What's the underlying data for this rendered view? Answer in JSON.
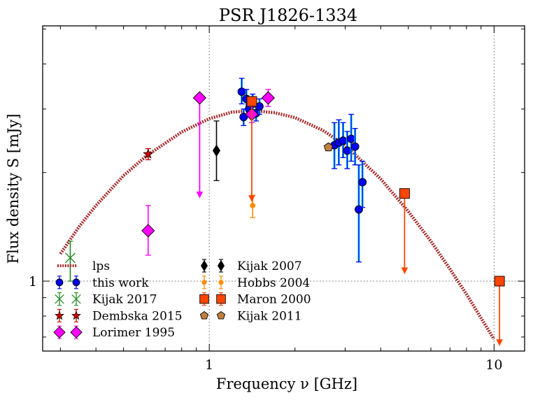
{
  "chart_data": {
    "type": "scatter",
    "title": "PSR J1826-1334",
    "xlabel": "Frequency ν [GHz]",
    "ylabel": "Flux density S [mJy]",
    "xscale": "log",
    "yscale": "log",
    "xlim": [
      0.26,
      12.8
    ],
    "ylim": [
      0.64,
      5.1
    ],
    "xticks": [
      {
        "value": 1,
        "label": "1"
      },
      {
        "value": 10,
        "label": "10"
      }
    ],
    "yticks": [
      {
        "value": 1,
        "label": "1"
      }
    ],
    "reference_lines": {
      "x": [
        1,
        10
      ],
      "y": [
        1
      ]
    },
    "colors": {
      "lps": "#a52a2a",
      "this_work": "#0000ee",
      "this_work_bar": "#11bff0",
      "kijak2017": "#228b22",
      "dembska": "#cc0000",
      "lorimer": "#ff00ff",
      "kijak2007": "#000000",
      "hobbs": "#ff8c00",
      "maron": "#ff4500",
      "kijak2011": "#c08040"
    },
    "legend": {
      "placement": "lower-left",
      "left_column": [
        {
          "key": "lps",
          "label": "lps"
        },
        {
          "key": "this_work",
          "label": "this work"
        },
        {
          "key": "kijak2017",
          "label": "Kijak 2017"
        },
        {
          "key": "dembska",
          "label": "Dembska 2015"
        },
        {
          "key": "lorimer",
          "label": "Lorimer 1995"
        }
      ],
      "right_column": [
        {
          "key": "kijak2007",
          "label": "Kijak 2007"
        },
        {
          "key": "hobbs",
          "label": "Hobbs 2004"
        },
        {
          "key": "maron",
          "label": "Maron 2000"
        },
        {
          "key": "kijak2011",
          "label": "Kijak 2011"
        }
      ]
    },
    "model_curve": {
      "name": "lps",
      "x": [
        0.3,
        0.35,
        0.4,
        0.5,
        0.6,
        0.8,
        1.0,
        1.2,
        1.42,
        1.7,
        2.0,
        2.5,
        3.0,
        4.0,
        5.0,
        6.0,
        7.0,
        8.0,
        9.0,
        10.0
      ],
      "y": [
        1.19,
        1.42,
        1.62,
        1.96,
        2.22,
        2.59,
        2.82,
        2.94,
        2.97,
        2.93,
        2.84,
        2.62,
        2.38,
        1.92,
        1.56,
        1.29,
        1.08,
        0.92,
        0.79,
        0.69
      ]
    },
    "series": [
      {
        "key": "this_work",
        "name": "this work",
        "marker": "circle",
        "points": [
          {
            "x": 1.3,
            "y": 3.35,
            "lo": 3.1,
            "hi": 3.65
          },
          {
            "x": 1.32,
            "y": 2.85,
            "lo": 2.7,
            "hi": 3.0
          },
          {
            "x": 1.35,
            "y": 3.2,
            "lo": 3.0,
            "hi": 3.4
          },
          {
            "x": 1.38,
            "y": 3.0,
            "lo": 2.85,
            "hi": 3.15
          },
          {
            "x": 1.42,
            "y": 3.1,
            "lo": 2.95,
            "hi": 3.3
          },
          {
            "x": 1.46,
            "y": 2.92,
            "lo": 2.78,
            "hi": 3.06
          },
          {
            "x": 1.5,
            "y": 3.05,
            "lo": 2.9,
            "hi": 3.2
          },
          {
            "x": 2.75,
            "y": 2.38,
            "lo": 2.05,
            "hi": 2.75
          },
          {
            "x": 2.85,
            "y": 2.42,
            "lo": 2.1,
            "hi": 2.8
          },
          {
            "x": 2.95,
            "y": 2.45,
            "lo": 2.2,
            "hi": 2.75
          },
          {
            "x": 3.05,
            "y": 2.3,
            "lo": 2.05,
            "hi": 2.6
          },
          {
            "x": 3.15,
            "y": 2.48,
            "lo": 2.15,
            "hi": 2.9
          },
          {
            "x": 3.25,
            "y": 2.36,
            "lo": 2.1,
            "hi": 2.65
          },
          {
            "x": 3.35,
            "y": 1.58,
            "lo": 1.13,
            "hi": 2.1
          },
          {
            "x": 3.45,
            "y": 1.88,
            "lo": 1.6,
            "hi": 2.15
          }
        ]
      },
      {
        "key": "kijak2017",
        "name": "Kijak 2017",
        "marker": "x",
        "points": [
          {
            "x": 0.325,
            "y": 1.16,
            "lo": 1.0,
            "hi": 1.29
          }
        ]
      },
      {
        "key": "dembska",
        "name": "Dembska 2015",
        "marker": "star",
        "points": [
          {
            "x": 0.61,
            "y": 2.25,
            "lo": 2.17,
            "hi": 2.33
          }
        ]
      },
      {
        "key": "lorimer",
        "name": "Lorimer 1995",
        "marker": "diamond",
        "points": [
          {
            "x": 0.61,
            "y": 1.38,
            "lo": 1.18,
            "hi": 1.62
          },
          {
            "x": 0.925,
            "y": 3.22,
            "limit": "upper",
            "arrow_to": 1.72
          },
          {
            "x": 1.41,
            "y": 2.9,
            "lo": 2.75,
            "hi": 3.05
          },
          {
            "x": 1.61,
            "y": 3.22,
            "lo": 3.05,
            "hi": 3.4
          }
        ]
      },
      {
        "key": "kijak2007",
        "name": "Kijak 2007",
        "marker": "thin-diamond",
        "points": [
          {
            "x": 1.06,
            "y": 2.3,
            "lo": 1.9,
            "hi": 2.78
          }
        ]
      },
      {
        "key": "hobbs",
        "name": "Hobbs 2004",
        "marker": "small-circle",
        "points": [
          {
            "x": 1.42,
            "y": 1.62,
            "lo": 1.5,
            "hi": 1.73
          }
        ]
      },
      {
        "key": "maron",
        "name": "Maron 2000",
        "marker": "square",
        "points": [
          {
            "x": 1.41,
            "y": 3.15,
            "limit": "upper",
            "arrow_to": 1.68
          },
          {
            "x": 4.85,
            "y": 1.75,
            "limit": "upper",
            "arrow_to": 1.06
          },
          {
            "x": 10.45,
            "y": 1.0,
            "limit": "upper",
            "arrow_to": 0.67
          }
        ]
      },
      {
        "key": "kijak2011",
        "name": "Kijak 2011",
        "marker": "pentagon",
        "points": [
          {
            "x": 2.62,
            "y": 2.35
          }
        ]
      }
    ]
  }
}
